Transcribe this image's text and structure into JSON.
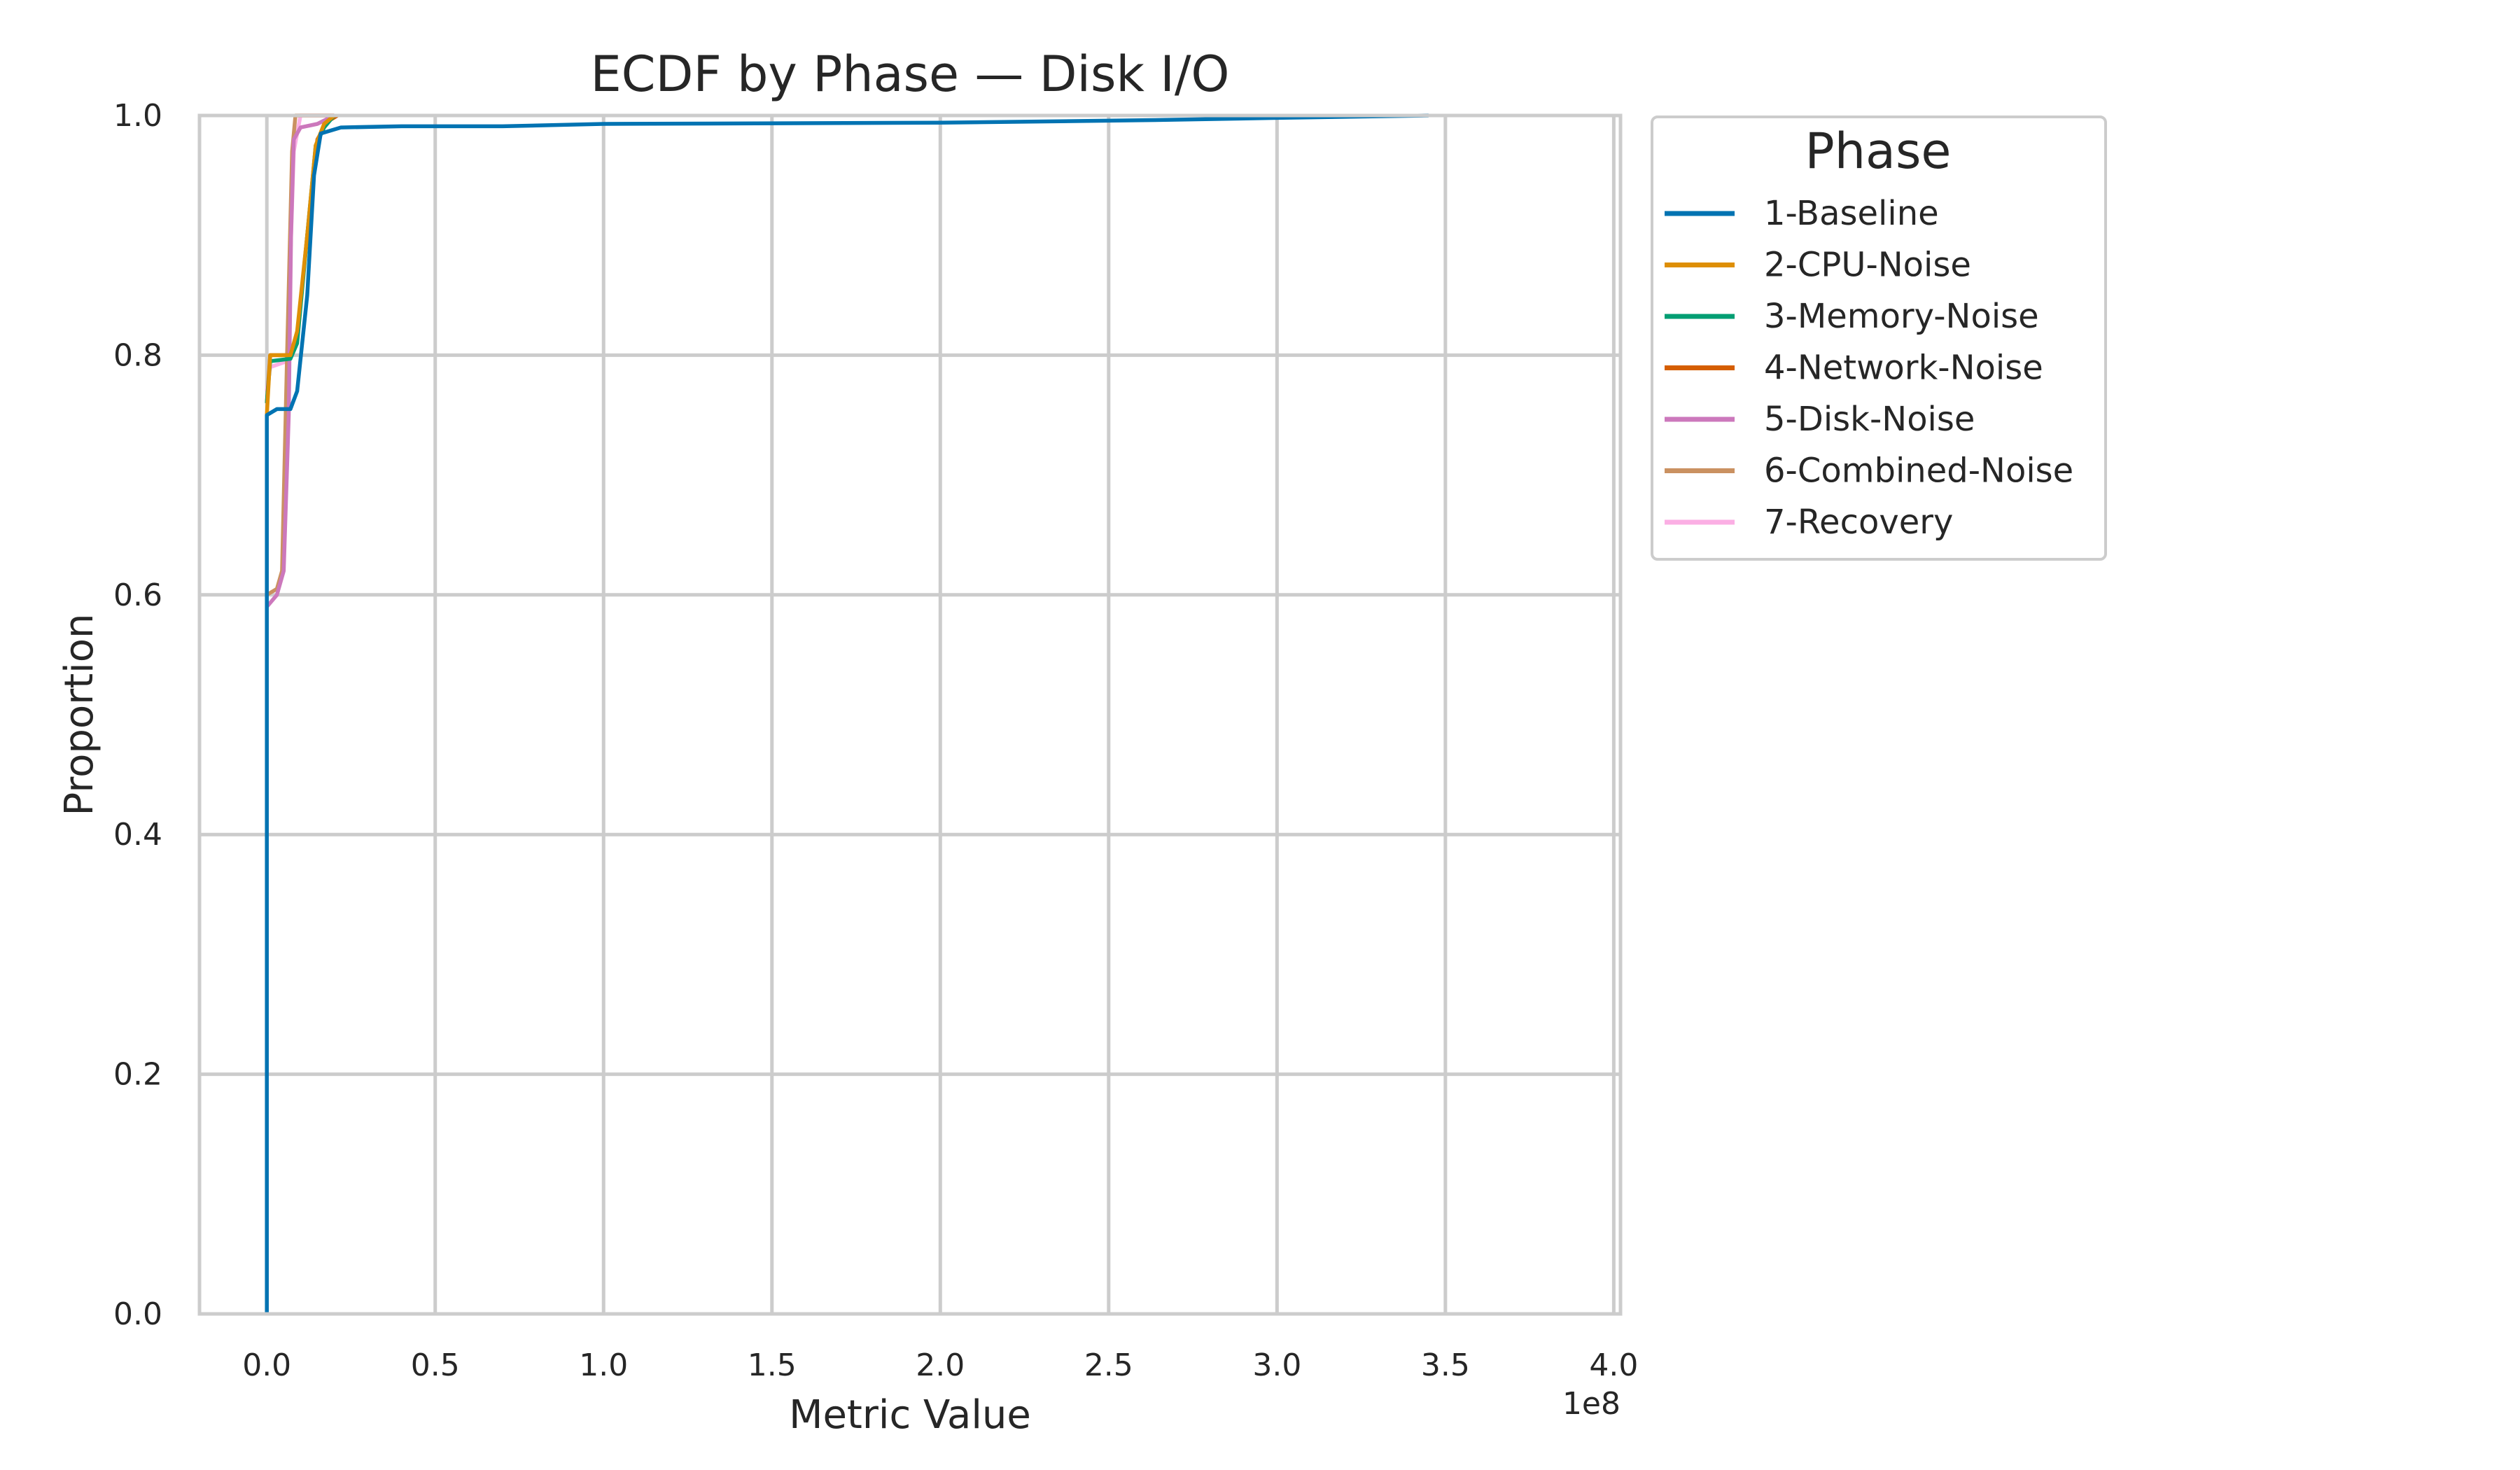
{
  "chart_data": {
    "type": "line",
    "title": "ECDF by Phase — Disk I/O",
    "xlabel": "Metric Value",
    "ylabel": "Proportion",
    "x_offset_label": "1e8",
    "xlim": [
      -0.2,
      4.02
    ],
    "ylim": [
      0,
      1.0
    ],
    "x_ticks": [
      0.0,
      0.5,
      1.0,
      1.5,
      2.0,
      2.5,
      3.0,
      3.5,
      4.0
    ],
    "x_tick_labels": [
      "0.0",
      "0.5",
      "1.0",
      "1.5",
      "2.0",
      "2.5",
      "3.0",
      "3.5",
      "4.0"
    ],
    "y_ticks": [
      0.0,
      0.2,
      0.4,
      0.6,
      0.8,
      1.0
    ],
    "y_tick_labels": [
      "0.0",
      "0.2",
      "0.4",
      "0.6",
      "0.8",
      "1.0"
    ],
    "grid": true,
    "legend": {
      "title": "Phase",
      "placement": "outside-right"
    },
    "series": [
      {
        "name": "1-Baseline",
        "color": "#0173b2",
        "points": [
          [
            0,
            0
          ],
          [
            0,
            0.75
          ],
          [
            0.03,
            0.755
          ],
          [
            0.07,
            0.755
          ],
          [
            0.09,
            0.77
          ],
          [
            0.12,
            0.85
          ],
          [
            0.14,
            0.95
          ],
          [
            0.16,
            0.985
          ],
          [
            0.22,
            0.99
          ],
          [
            0.4,
            0.991
          ],
          [
            0.7,
            0.991
          ],
          [
            1.0,
            0.993
          ],
          [
            2.0,
            0.994
          ],
          [
            2.6,
            0.996
          ],
          [
            3.0,
            0.998
          ],
          [
            3.45,
            1.0
          ]
        ]
      },
      {
        "name": "2-CPU-Noise",
        "color": "#de8f05",
        "points": [
          [
            0,
            0.75
          ],
          [
            0.01,
            0.8
          ],
          [
            0.07,
            0.8
          ],
          [
            0.09,
            0.82
          ],
          [
            0.12,
            0.9
          ],
          [
            0.145,
            0.975
          ],
          [
            0.17,
            0.993
          ],
          [
            0.2,
            1.0
          ]
        ]
      },
      {
        "name": "3-Memory-Noise",
        "color": "#029e73",
        "points": [
          [
            0,
            0.76
          ],
          [
            0.01,
            0.795
          ],
          [
            0.07,
            0.797
          ],
          [
            0.09,
            0.81
          ],
          [
            0.12,
            0.9
          ],
          [
            0.145,
            0.975
          ],
          [
            0.17,
            0.99
          ],
          [
            0.2,
            1.0
          ]
        ]
      },
      {
        "name": "4-Network-Noise",
        "color": "#d55e00",
        "points": [
          [
            0,
            0.76
          ],
          [
            0.01,
            0.8
          ],
          [
            0.07,
            0.8
          ],
          [
            0.09,
            0.815
          ],
          [
            0.12,
            0.9
          ],
          [
            0.15,
            0.98
          ],
          [
            0.18,
            0.995
          ],
          [
            0.21,
            1.0
          ]
        ]
      },
      {
        "name": "5-Disk-Noise",
        "color": "#cc78bc",
        "points": [
          [
            0,
            0.59
          ],
          [
            0.015,
            0.595
          ],
          [
            0.03,
            0.6
          ],
          [
            0.05,
            0.62
          ],
          [
            0.065,
            0.75
          ],
          [
            0.072,
            0.9
          ],
          [
            0.08,
            0.98
          ],
          [
            0.1,
            0.99
          ],
          [
            0.15,
            0.993
          ],
          [
            0.2,
            1.0
          ]
        ]
      },
      {
        "name": "6-Combined-Noise",
        "color": "#ca9161",
        "points": [
          [
            0,
            0.6
          ],
          [
            0.03,
            0.605
          ],
          [
            0.045,
            0.62
          ],
          [
            0.06,
            0.8
          ],
          [
            0.075,
            0.97
          ],
          [
            0.085,
            1.0
          ],
          [
            0.2,
            1.0
          ]
        ]
      },
      {
        "name": "7-Recovery",
        "color": "#fbafe4",
        "points": [
          [
            0,
            0.77
          ],
          [
            0.01,
            0.79
          ],
          [
            0.06,
            0.795
          ],
          [
            0.08,
            0.97
          ],
          [
            0.1,
            1.0
          ],
          [
            0.2,
            1.0
          ]
        ]
      }
    ]
  }
}
